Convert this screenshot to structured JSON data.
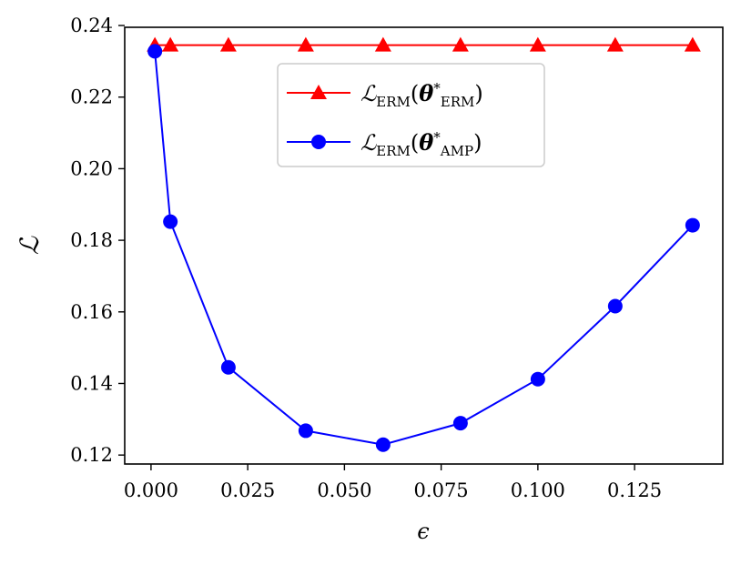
{
  "chart_data": {
    "type": "line",
    "xlabel": "ϵ",
    "ylabel": "ℒ",
    "xlim": [
      -0.0068,
      0.1478
    ],
    "ylim": [
      0.1175,
      0.2395
    ],
    "xticks": [
      0.0,
      0.025,
      0.05,
      0.075,
      0.1,
      0.125
    ],
    "xtick_labels": [
      "0.000",
      "0.025",
      "0.050",
      "0.075",
      "0.100",
      "0.125"
    ],
    "yticks": [
      0.12,
      0.14,
      0.16,
      0.18,
      0.2,
      0.22,
      0.24
    ],
    "ytick_labels": [
      "0.12",
      "0.14",
      "0.16",
      "0.18",
      "0.20",
      "0.22",
      "0.24"
    ],
    "grid": false,
    "legend_position": "top-center",
    "series": [
      {
        "name": "ℒERM(θ*ERM)",
        "legend_main": "ℒ",
        "legend_sub1": "ERM",
        "legend_arg": "θ",
        "legend_sup": "*",
        "legend_sub2": "ERM",
        "color": "#ff0000",
        "marker": "triangle",
        "x": [
          0.001,
          0.005,
          0.02,
          0.04,
          0.06,
          0.08,
          0.1,
          0.12,
          0.14
        ],
        "y": [
          0.2345,
          0.2345,
          0.2345,
          0.2345,
          0.2345,
          0.2345,
          0.2345,
          0.2345,
          0.2345
        ]
      },
      {
        "name": "ℒERM(θ*AMP)",
        "legend_main": "ℒ",
        "legend_sub1": "ERM",
        "legend_arg": "θ",
        "legend_sup": "*",
        "legend_sub2": "AMP",
        "color": "#0000ff",
        "marker": "circle",
        "x": [
          0.001,
          0.005,
          0.02,
          0.04,
          0.06,
          0.08,
          0.1,
          0.12,
          0.14
        ],
        "y": [
          0.2328,
          0.1852,
          0.1445,
          0.1268,
          0.1229,
          0.1289,
          0.1412,
          0.1616,
          0.1842
        ]
      }
    ]
  }
}
